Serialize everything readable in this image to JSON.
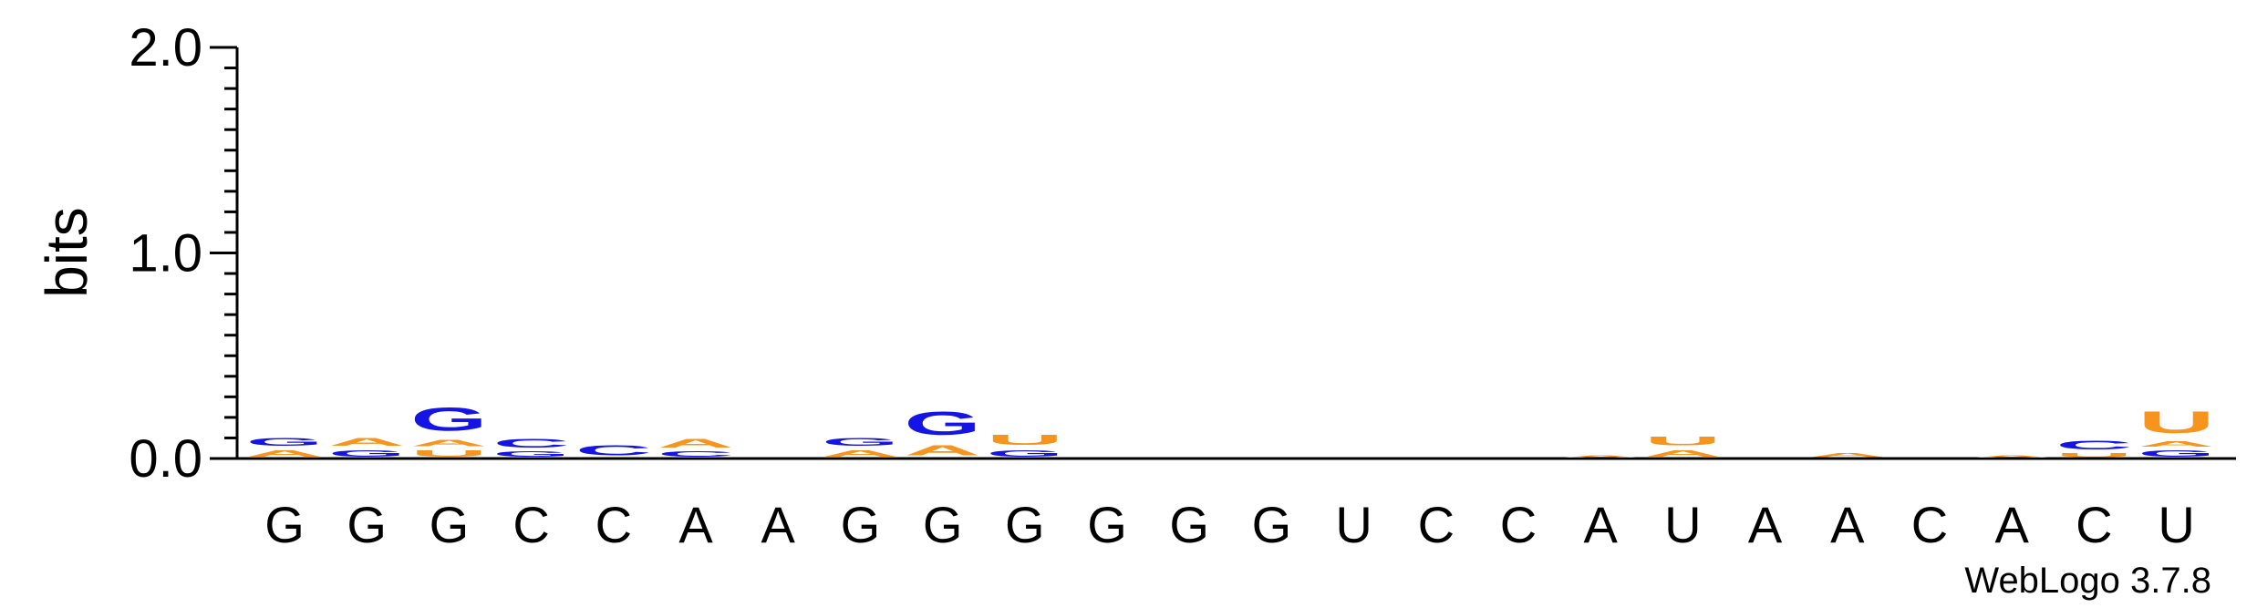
{
  "chart_data": {
    "type": "sequence-logo",
    "ylabel": "bits",
    "ylim": [
      0,
      2.0
    ],
    "yticks": [
      {
        "value": 0.0,
        "label": "0.0"
      },
      {
        "value": 1.0,
        "label": "1.0"
      },
      {
        "value": 2.0,
        "label": "2.0"
      }
    ],
    "ytick_step_minor": 0.1,
    "colors": {
      "A": "#f7941d",
      "U": "#f7941d",
      "G": "#1414e6",
      "C": "#1414e6"
    },
    "positions": [
      {
        "label": "G",
        "stack": [
          {
            "letter": "A",
            "height": 0.05
          },
          {
            "letter": "G",
            "height": 0.06
          }
        ]
      },
      {
        "label": "G",
        "stack": [
          {
            "letter": "G",
            "height": 0.05
          },
          {
            "letter": "A",
            "height": 0.06
          }
        ]
      },
      {
        "label": "G",
        "stack": [
          {
            "letter": "U",
            "height": 0.05
          },
          {
            "letter": "A",
            "height": 0.05
          },
          {
            "letter": "G",
            "height": 0.18
          }
        ]
      },
      {
        "label": "C",
        "stack": [
          {
            "letter": "G",
            "height": 0.04
          },
          {
            "letter": "C",
            "height": 0.07
          }
        ]
      },
      {
        "label": "C",
        "stack": [
          {
            "letter": "C",
            "height": 0.08
          }
        ]
      },
      {
        "label": "A",
        "stack": [
          {
            "letter": "C",
            "height": 0.04
          },
          {
            "letter": "A",
            "height": 0.07
          }
        ]
      },
      {
        "label": "A",
        "stack": []
      },
      {
        "label": "G",
        "stack": [
          {
            "letter": "A",
            "height": 0.05
          },
          {
            "letter": "G",
            "height": 0.06
          }
        ]
      },
      {
        "label": "G",
        "stack": [
          {
            "letter": "A",
            "height": 0.08
          },
          {
            "letter": "G",
            "height": 0.18
          }
        ]
      },
      {
        "label": "G",
        "stack": [
          {
            "letter": "G",
            "height": 0.05
          },
          {
            "letter": "U",
            "height": 0.08
          }
        ]
      },
      {
        "label": "G",
        "stack": []
      },
      {
        "label": "G",
        "stack": []
      },
      {
        "label": "G",
        "stack": []
      },
      {
        "label": "U",
        "stack": []
      },
      {
        "label": "C",
        "stack": []
      },
      {
        "label": "C",
        "stack": []
      },
      {
        "label": "A",
        "stack": [
          {
            "letter": "A",
            "height": 0.02
          }
        ]
      },
      {
        "label": "U",
        "stack": [
          {
            "letter": "A",
            "height": 0.05
          },
          {
            "letter": "U",
            "height": 0.07
          }
        ]
      },
      {
        "label": "A",
        "stack": []
      },
      {
        "label": "A",
        "stack": [
          {
            "letter": "A",
            "height": 0.03
          }
        ]
      },
      {
        "label": "C",
        "stack": []
      },
      {
        "label": "A",
        "stack": [
          {
            "letter": "A",
            "height": 0.02
          }
        ]
      },
      {
        "label": "C",
        "stack": [
          {
            "letter": "U",
            "height": 0.03
          },
          {
            "letter": "C",
            "height": 0.07
          }
        ]
      },
      {
        "label": "U",
        "stack": [
          {
            "letter": "G",
            "height": 0.05
          },
          {
            "letter": "A",
            "height": 0.04
          },
          {
            "letter": "U",
            "height": 0.17
          }
        ]
      }
    ]
  },
  "credit": "WebLogo 3.7.8"
}
